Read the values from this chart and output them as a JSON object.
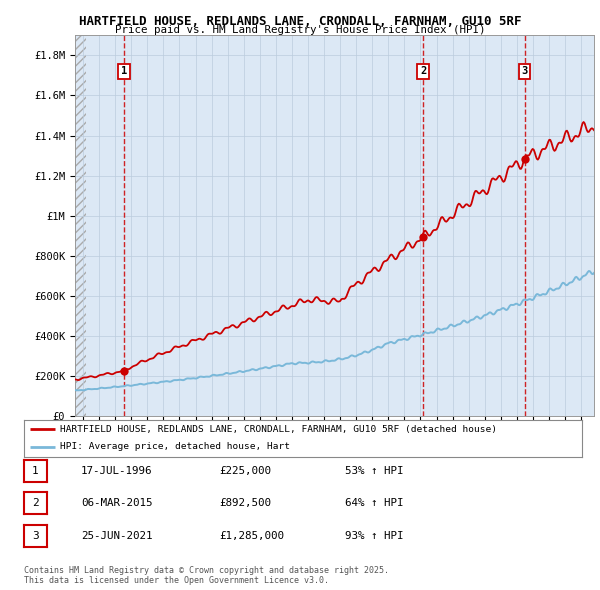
{
  "title_line1": "HARTFIELD HOUSE, REDLANDS LANE, CRONDALL, FARNHAM, GU10 5RF",
  "title_line2": "Price paid vs. HM Land Registry's House Price Index (HPI)",
  "ylabel_ticks": [
    "£0",
    "£200K",
    "£400K",
    "£600K",
    "£800K",
    "£1M",
    "£1.2M",
    "£1.4M",
    "£1.6M",
    "£1.8M"
  ],
  "ytick_values": [
    0,
    200000,
    400000,
    600000,
    800000,
    1000000,
    1200000,
    1400000,
    1600000,
    1800000
  ],
  "ylim": [
    0,
    1900000
  ],
  "xlim_start": 1993.5,
  "xlim_end": 2025.8,
  "sale_dates": [
    1996.54,
    2015.17,
    2021.48
  ],
  "sale_prices": [
    225000,
    892500,
    1285000
  ],
  "sale_labels": [
    "1",
    "2",
    "3"
  ],
  "transaction_info": [
    {
      "label": "1",
      "date": "17-JUL-1996",
      "price": "£225,000",
      "hpi": "53% ↑ HPI"
    },
    {
      "label": "2",
      "date": "06-MAR-2015",
      "price": "£892,500",
      "hpi": "64% ↑ HPI"
    },
    {
      "label": "3",
      "date": "25-JUN-2021",
      "price": "£1,285,000",
      "hpi": "93% ↑ HPI"
    }
  ],
  "hpi_color": "#7ab8d9",
  "price_color": "#cc0000",
  "dashed_line_color": "#cc0000",
  "background_color": "#dce8f5",
  "legend_line1": "HARTFIELD HOUSE, REDLANDS LANE, CRONDALL, FARNHAM, GU10 5RF (detached house)",
  "legend_line2": "HPI: Average price, detached house, Hart",
  "footer_line1": "Contains HM Land Registry data © Crown copyright and database right 2025.",
  "footer_line2": "This data is licensed under the Open Government Licence v3.0."
}
